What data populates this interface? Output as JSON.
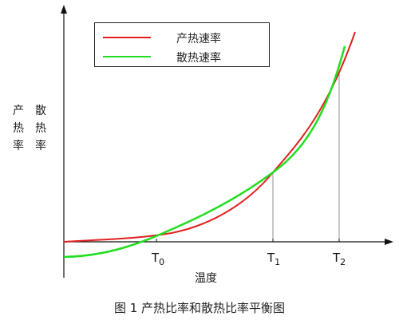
{
  "chart_data": {
    "type": "line",
    "xlabel": "温度",
    "ylabel": [
      "产",
      "散",
      "热",
      "热",
      "率",
      "率"
    ],
    "caption": "图 1   产热比率和散热比率平衡图",
    "x_ticks": [
      {
        "label": "T",
        "sub": "0"
      },
      {
        "label": "T",
        "sub": "1"
      },
      {
        "label": "T",
        "sub": "2"
      }
    ],
    "legend_position": "top-left",
    "series": [
      {
        "name": "产热速率",
        "color": "#e02020"
      },
      {
        "name": "散热速率",
        "color": "#22dd22"
      }
    ],
    "grid": false
  }
}
